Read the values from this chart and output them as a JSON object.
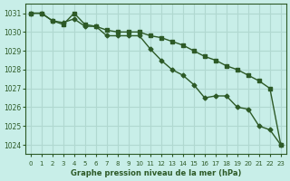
{
  "title": "Graphe pression niveau de la mer (hPa)",
  "background_color": "#c8eee8",
  "grid_color": "#b0d8d0",
  "line_color": "#2d5a27",
  "x_labels": [
    "0",
    "1",
    "2",
    "3",
    "4",
    "5",
    "6",
    "7",
    "8",
    "9",
    "10",
    "11",
    "12",
    "13",
    "14",
    "15",
    "16",
    "17",
    "18",
    "19",
    "20",
    "21",
    "22",
    "23"
  ],
  "ylim": [
    1023.5,
    1031.5
  ],
  "yticks": [
    1024,
    1025,
    1026,
    1027,
    1028,
    1029,
    1030,
    1031
  ],
  "series1": [
    1031.0,
    1031.0,
    1030.6,
    1030.5,
    1030.7,
    1030.3,
    1030.3,
    1029.8,
    1029.8,
    1029.8,
    1029.8,
    1029.1,
    1028.5,
    1028.0,
    1027.7,
    1027.2,
    1026.5,
    1026.6,
    1026.6,
    1026.0,
    1025.9,
    1025.0,
    1024.8,
    1024.0
  ],
  "series2": [
    1031.0,
    1031.0,
    1030.6,
    1030.4,
    1031.0,
    1030.4,
    1030.3,
    1030.1,
    1030.0,
    1030.0,
    1030.0,
    1029.8,
    1029.7,
    1029.5,
    1029.3,
    1029.0,
    1028.7,
    1028.5,
    1028.2,
    1028.0,
    1027.7,
    1027.4,
    1027.0,
    1024.0
  ]
}
